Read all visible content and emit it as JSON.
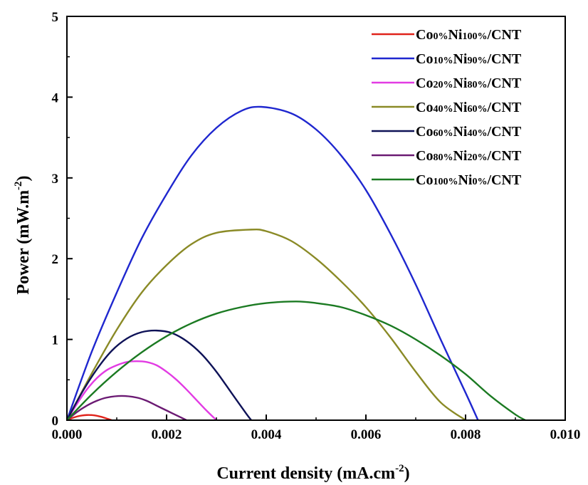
{
  "chart_data": {
    "type": "line",
    "xlabel": "Current density (mA.cm",
    "xlabel_sup": "-2",
    "xlabel_end": ")",
    "ylabel": "Power (mW.m",
    "ylabel_sup": "-2",
    "ylabel_end": ")",
    "xlim": [
      0,
      0.01
    ],
    "ylim": [
      0,
      5
    ],
    "x_ticks": [
      "0.000",
      "0.002",
      "0.004",
      "0.006",
      "0.008",
      "0.010"
    ],
    "y_ticks": [
      "0",
      "1",
      "2",
      "3",
      "4",
      "5"
    ],
    "grid": false,
    "legend_position": "top-right",
    "series": [
      {
        "name": "Co0%Ni100%/CNT",
        "label": {
          "a": "Co",
          "b": "0%",
          "c": "Ni",
          "d": "100%",
          "e": "/CNT"
        },
        "color": "#e0231b",
        "x": [
          0,
          0.0001,
          0.0002,
          0.0003,
          0.0004,
          0.0005,
          0.0006,
          0.0007,
          0.0008,
          0.0009
        ],
        "y": [
          0,
          0.025,
          0.045,
          0.058,
          0.064,
          0.063,
          0.055,
          0.04,
          0.02,
          0
        ]
      },
      {
        "name": "Co10%Ni90%/CNT",
        "label": {
          "a": "Co",
          "b": "10%",
          "c": "Ni",
          "d": "90%",
          "e": "/CNT"
        },
        "color": "#1f27cf",
        "x": [
          0,
          0.0005,
          0.001,
          0.0015,
          0.002,
          0.0025,
          0.003,
          0.0035,
          0.0039,
          0.0045,
          0.005,
          0.0055,
          0.006,
          0.0065,
          0.007,
          0.0075,
          0.008,
          0.00825
        ],
        "y": [
          0,
          0.85,
          1.58,
          2.25,
          2.8,
          3.28,
          3.62,
          3.83,
          3.88,
          3.8,
          3.6,
          3.28,
          2.85,
          2.3,
          1.68,
          1.0,
          0.34,
          0
        ]
      },
      {
        "name": "Co20%Ni80%/CNT",
        "label": {
          "a": "Co",
          "b": "20%",
          "c": "Ni",
          "d": "80%",
          "e": "/CNT"
        },
        "color": "#e23be3",
        "x": [
          0,
          0.0002,
          0.0004,
          0.0006,
          0.0008,
          0.001,
          0.0012,
          0.0014,
          0.0016,
          0.0018,
          0.002,
          0.0022,
          0.0024,
          0.0026,
          0.0028,
          0.003
        ],
        "y": [
          0,
          0.2,
          0.38,
          0.52,
          0.62,
          0.68,
          0.72,
          0.73,
          0.72,
          0.68,
          0.6,
          0.5,
          0.38,
          0.25,
          0.12,
          0
        ]
      },
      {
        "name": "Co40%Ni60%/CNT",
        "label": {
          "a": "Co",
          "b": "40%",
          "c": "Ni",
          "d": "60%",
          "e": "/CNT"
        },
        "color": "#8a8a26",
        "x": [
          0,
          0.0005,
          0.001,
          0.0015,
          0.002,
          0.0025,
          0.003,
          0.0037,
          0.004,
          0.0045,
          0.005,
          0.0055,
          0.006,
          0.0065,
          0.007,
          0.0075,
          0.008
        ],
        "y": [
          0,
          0.58,
          1.12,
          1.58,
          1.92,
          2.18,
          2.32,
          2.36,
          2.34,
          2.22,
          2.0,
          1.72,
          1.4,
          1.02,
          0.6,
          0.22,
          0
        ]
      },
      {
        "name": "Co60%Ni40%/CNT",
        "label": {
          "a": "Co",
          "b": "60%",
          "c": "Ni",
          "d": "40%",
          "e": "/CNT"
        },
        "color": "#0e1257",
        "x": [
          0,
          0.0003,
          0.0006,
          0.0009,
          0.0012,
          0.0015,
          0.0018,
          0.0021,
          0.0024,
          0.0027,
          0.003,
          0.0033,
          0.0036,
          0.0037
        ],
        "y": [
          0,
          0.34,
          0.63,
          0.86,
          1.01,
          1.09,
          1.11,
          1.08,
          0.98,
          0.82,
          0.6,
          0.34,
          0.08,
          0
        ]
      },
      {
        "name": "Co80%Ni20%/CNT",
        "label": {
          "a": "Co",
          "b": "80%",
          "c": "Ni",
          "d": "20%",
          "e": "/CNT"
        },
        "color": "#6b1a73",
        "x": [
          0,
          0.0002,
          0.0004,
          0.0006,
          0.0008,
          0.0011,
          0.0014,
          0.0016,
          0.0018,
          0.002,
          0.0022,
          0.0024
        ],
        "y": [
          0,
          0.1,
          0.18,
          0.24,
          0.28,
          0.3,
          0.28,
          0.24,
          0.18,
          0.12,
          0.06,
          0
        ]
      },
      {
        "name": "Co100%Ni0%/CNT",
        "label": {
          "a": "Co",
          "b": "100%",
          "c": "Ni",
          "d": "0%",
          "e": "/CNT"
        },
        "color": "#1b7a22",
        "x": [
          0,
          0.0005,
          0.001,
          0.0015,
          0.002,
          0.0025,
          0.003,
          0.0035,
          0.004,
          0.0046,
          0.005,
          0.0055,
          0.006,
          0.0065,
          0.007,
          0.0075,
          0.008,
          0.0085,
          0.009,
          0.0092
        ],
        "y": [
          0,
          0.32,
          0.6,
          0.84,
          1.04,
          1.2,
          1.32,
          1.4,
          1.45,
          1.47,
          1.45,
          1.4,
          1.3,
          1.17,
          1.0,
          0.8,
          0.57,
          0.3,
          0.07,
          0
        ]
      }
    ]
  }
}
